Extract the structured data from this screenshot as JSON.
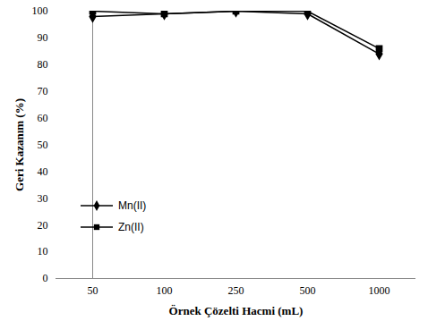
{
  "chart_data": {
    "type": "line",
    "x_label": "Örnek Çözelti Hacmi (mL)",
    "y_label": "Geri Kazanım (%)",
    "categories": [
      "50",
      "100",
      "250",
      "500",
      "1000"
    ],
    "series": [
      {
        "name": "Mn(II)",
        "color": "#000000",
        "marker": "diamond",
        "values": [
          98,
          99,
          100,
          99,
          84
        ]
      },
      {
        "name": "Zn(II)",
        "color": "#000000",
        "marker": "square",
        "values": [
          100,
          99,
          100,
          100,
          86
        ]
      }
    ],
    "ylim": [
      0,
      100
    ],
    "yticks": [
      0,
      10,
      20,
      30,
      40,
      50,
      60,
      70,
      80,
      90,
      100
    ],
    "grid": false,
    "legend": "lower-left"
  }
}
